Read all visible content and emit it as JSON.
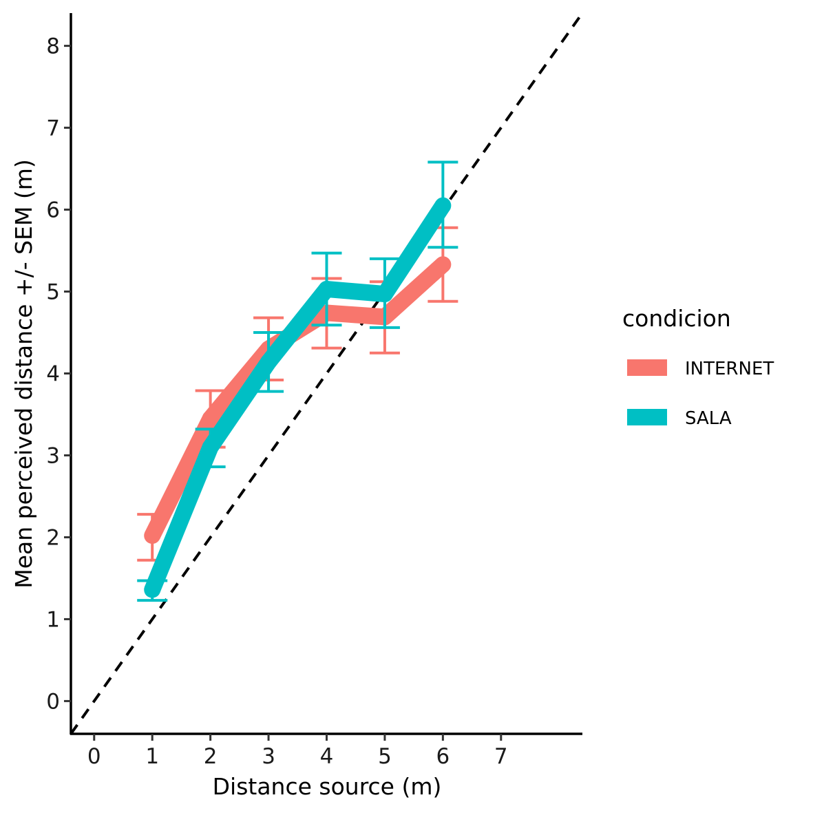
{
  "chart_data": {
    "type": "line",
    "title": "",
    "xlabel": "Distance source (m)",
    "ylabel": "Mean perceived distance +/- SEM (m)",
    "xlim": [
      -0.4,
      8.4
    ],
    "ylim": [
      -0.4,
      8.4
    ],
    "x_ticks": [
      0,
      1,
      2,
      3,
      4,
      5,
      6,
      7
    ],
    "y_ticks": [
      0,
      1,
      2,
      3,
      4,
      5,
      6,
      7,
      8
    ],
    "grid": false,
    "reference_line": {
      "style": "dashed",
      "color": "#000000",
      "slope": 1,
      "intercept": 0
    },
    "legend": {
      "title": "condicion",
      "position": "right"
    },
    "x": [
      1,
      2,
      3,
      4,
      5,
      6
    ],
    "series": [
      {
        "name": "INTERNET",
        "color": "#F8766D",
        "values": [
          2.02,
          3.45,
          4.3,
          4.74,
          4.69,
          5.33
        ],
        "error_low": [
          1.72,
          3.1,
          3.92,
          4.31,
          4.25,
          4.88
        ],
        "error_high": [
          2.28,
          3.79,
          4.68,
          5.16,
          5.12,
          5.78
        ]
      },
      {
        "name": "SALA",
        "color": "#00BFC4",
        "values": [
          1.36,
          3.1,
          4.14,
          5.03,
          4.97,
          6.05
        ],
        "error_low": [
          1.23,
          2.86,
          3.78,
          4.59,
          4.56,
          5.54
        ],
        "error_high": [
          1.47,
          3.32,
          4.5,
          5.47,
          5.4,
          6.58
        ]
      }
    ]
  }
}
